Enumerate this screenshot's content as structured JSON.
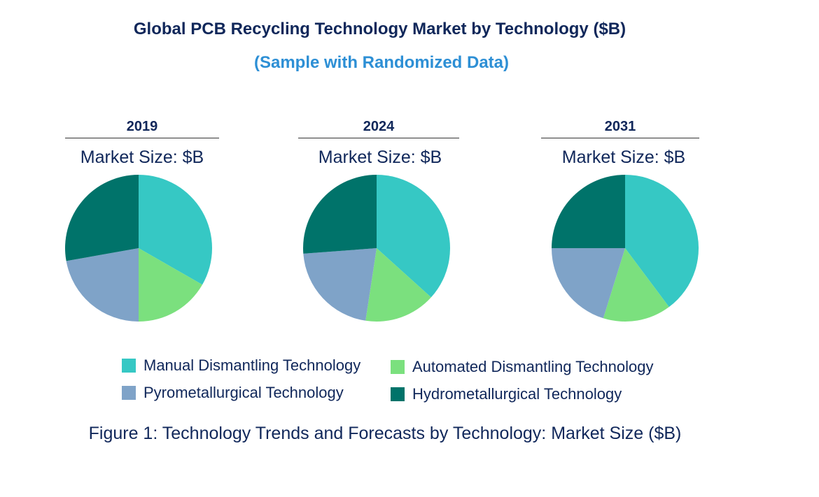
{
  "chart_data": {
    "type": "pie",
    "title": "Global PCB Recycling Technology Market by Technology ($B)",
    "subtitle": "(Sample with Randomized Data)",
    "caption": "Figure 1: Technology Trends and Forecasts by Technology: Market Size ($B)",
    "categories": [
      "Manual Dismantling Technology",
      "Automated Dismantling Technology",
      "Pyrometallurgical Technology",
      "Hydrometallurgical Technology"
    ],
    "colors": [
      "#36c8c4",
      "#7be07e",
      "#7fa3c8",
      "#00736a"
    ],
    "legend_placement": "bottom",
    "pies": [
      {
        "year": "2019",
        "label": "Market Size: $B",
        "values": [
          33.3,
          16.7,
          22.2,
          27.8
        ]
      },
      {
        "year": "2024",
        "label": "Market Size: $B",
        "values": [
          36.7,
          15.7,
          21.4,
          26.2
        ]
      },
      {
        "year": "2031",
        "label": "Market Size: $B",
        "values": [
          39.8,
          15.0,
          20.2,
          25.0
        ]
      }
    ]
  }
}
